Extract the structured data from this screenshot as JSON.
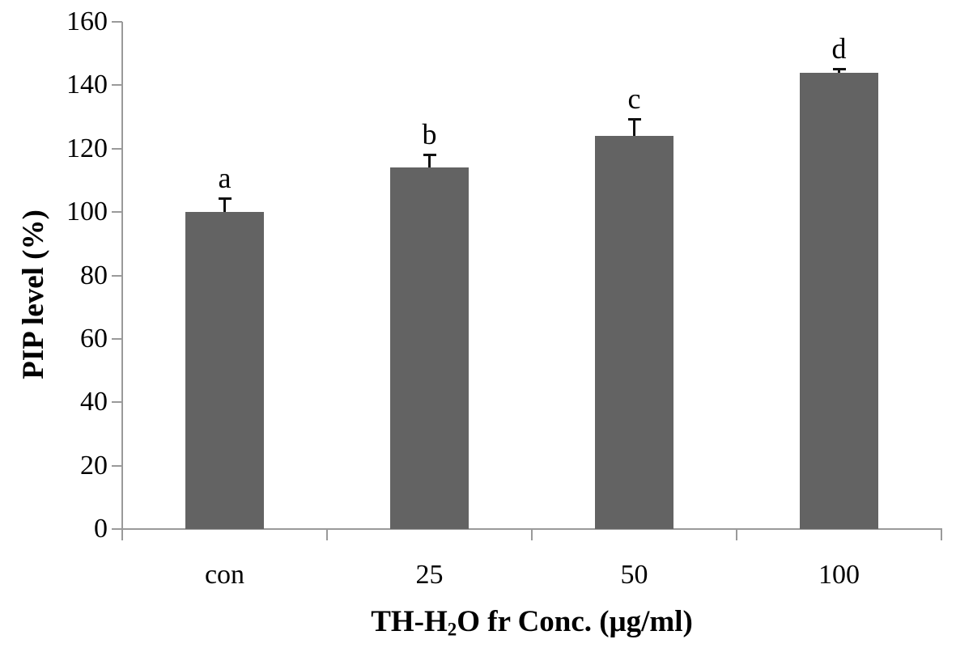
{
  "chart_data": {
    "type": "bar",
    "title": "",
    "categories": [
      "con",
      "25",
      "50",
      "100"
    ],
    "values": [
      100,
      114,
      124,
      144
    ],
    "errors": [
      4,
      4,
      5,
      1
    ],
    "bar_labels": [
      "a",
      "b",
      "c",
      "d"
    ],
    "xlabel": "TH-H2O fr Conc. (μg/ml)",
    "xlabel_parts": {
      "prefix": "TH-H",
      "sub": "2",
      "suffix": "O fr Conc. (μg/ml)"
    },
    "ylabel": "PIP level (%)",
    "ylim": [
      0,
      160
    ],
    "yticks": [
      0,
      20,
      40,
      60,
      80,
      100,
      120,
      140,
      160
    ],
    "grid": false,
    "legend": false,
    "bar_color": "#636363",
    "axis_color": "#9a9a9a",
    "error_color": "#111111",
    "text_color": "#000000",
    "background": "#ffffff"
  }
}
